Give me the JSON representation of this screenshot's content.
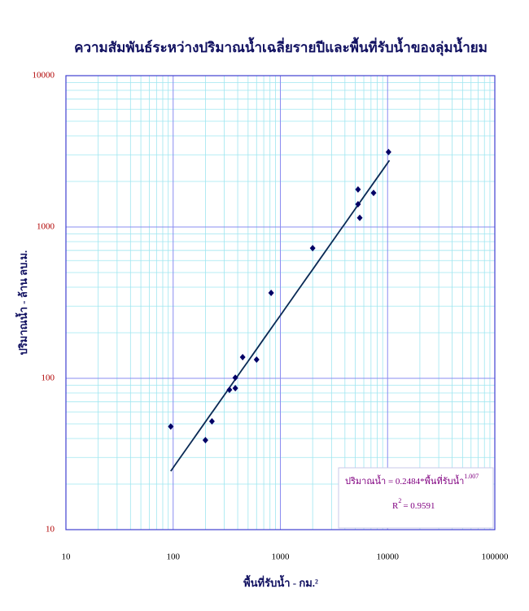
{
  "chart_data": {
    "type": "scatter",
    "title": "ความสัมพันธ์ระหว่างปริมาณน้ำเฉลี่ยรายปีและพื้นที่รับน้ำของลุ่มน้ำยม",
    "x_label": "พื้นที่รับน้ำ - กม.²",
    "y_label": "ปริมาณน้ำ - ล้าน ลบ.ม.",
    "log_x": true,
    "log_y": true,
    "grid": true,
    "xlim": [
      10,
      100000
    ],
    "ylim": [
      10,
      10000
    ],
    "xticks": [
      10,
      100,
      1000,
      10000,
      100000
    ],
    "yticks": [
      10,
      100,
      1000,
      10000
    ],
    "color": "#000066",
    "x": [
      95,
      200,
      230,
      335,
      380,
      380,
      445,
      600,
      820,
      2000,
      5300,
      5300,
      5500,
      7400,
      10200
    ],
    "values": [
      48,
      39,
      52,
      84,
      86,
      101,
      138,
      133,
      367,
      725,
      1770,
      1415,
      1150,
      1680,
      3130
    ],
    "trendline": {
      "coefficient": 0.2484,
      "exponent": 1.007,
      "x": [
        95,
        10400
      ],
      "color": "#0a2a55"
    },
    "equation_text": "ปริมาณน้ำ = 0.2484*พื้นที่รับน้ำ",
    "equation_power": "1.007",
    "r_squared_label": "R",
    "r_squared_power": "2",
    "r_squared_value": "= 0.9591"
  }
}
